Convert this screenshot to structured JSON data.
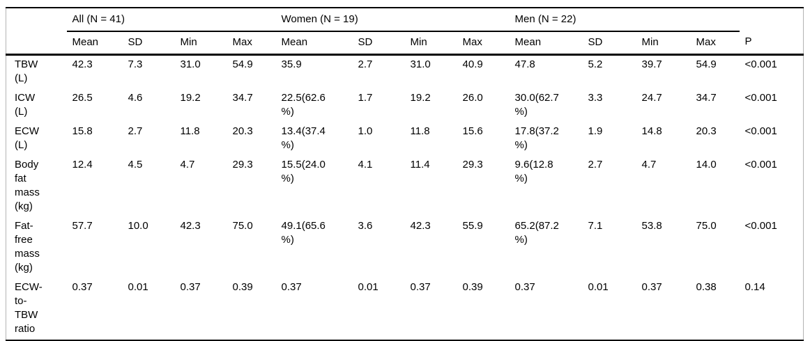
{
  "table": {
    "groups": [
      {
        "label": "All (N = 41)"
      },
      {
        "label": "Women (N = 19)"
      },
      {
        "label": "Men (N = 22)"
      }
    ],
    "sub_columns": [
      "Mean",
      "SD",
      "Min",
      "Max",
      "Mean",
      "SD",
      "Min",
      "Max",
      "Mean",
      "SD",
      "Min",
      "Max"
    ],
    "p_label": "P",
    "rows": [
      {
        "label": "TBW\n(L)",
        "cells": [
          "42.3",
          "7.3",
          "31.0",
          "54.9",
          "35.9",
          "2.7",
          "31.0",
          "40.9",
          "47.8",
          "5.2",
          "39.7",
          "54.9",
          "<0.001"
        ]
      },
      {
        "label": "ICW\n(L)",
        "cells": [
          "26.5",
          "4.6",
          "19.2",
          "34.7",
          "22.5(62.6\n%)",
          "1.7",
          "19.2",
          "26.0",
          "30.0(62.7\n%)",
          "3.3",
          "24.7",
          "34.7",
          "<0.001"
        ]
      },
      {
        "label": "ECW\n(L)",
        "cells": [
          "15.8",
          "2.7",
          "11.8",
          "20.3",
          "13.4(37.4\n%)",
          "1.0",
          "11.8",
          "15.6",
          "17.8(37.2\n%)",
          "1.9",
          "14.8",
          "20.3",
          "<0.001"
        ]
      },
      {
        "label": "Body\nfat\nmass\n(kg)",
        "cells": [
          "12.4",
          "4.5",
          "4.7",
          "29.3",
          "15.5(24.0\n%)",
          "4.1",
          "11.4",
          "29.3",
          "9.6(12.8\n%)",
          "2.7",
          "4.7",
          "14.0",
          "<0.001"
        ]
      },
      {
        "label": "Fat-\nfree\nmass\n(kg)",
        "cells": [
          "57.7",
          "10.0",
          "42.3",
          "75.0",
          "49.1(65.6\n%)",
          "3.6",
          "42.3",
          "55.9",
          "65.2(87.2\n%)",
          "7.1",
          "53.8",
          "75.0",
          "<0.001"
        ]
      },
      {
        "label": "ECW-\nto-\nTBW\nratio",
        "cells": [
          "0.37",
          "0.01",
          "0.37",
          "0.39",
          "0.37",
          "0.01",
          "0.37",
          "0.39",
          "0.37",
          "0.01",
          "0.37",
          "0.38",
          "0.14"
        ]
      }
    ],
    "colors": {
      "text": "#000000",
      "rule_heavy": "#000000",
      "rule_side": "#b3b3b3",
      "background": "#ffffff"
    }
  },
  "chart_data": {
    "type": "table",
    "title": "",
    "column_groups": [
      "All (N = 41)",
      "Women (N = 19)",
      "Men (N = 22)"
    ],
    "columns": [
      "Mean",
      "SD",
      "Min",
      "Max",
      "Mean",
      "SD",
      "Min",
      "Max",
      "Mean",
      "SD",
      "Min",
      "Max",
      "P"
    ],
    "row_labels": [
      "TBW (L)",
      "ICW (L)",
      "ECW (L)",
      "Body fat mass (kg)",
      "Fat-free mass (kg)",
      "ECW-to-TBW ratio"
    ],
    "rows": [
      [
        "42.3",
        "7.3",
        "31.0",
        "54.9",
        "35.9",
        "2.7",
        "31.0",
        "40.9",
        "47.8",
        "5.2",
        "39.7",
        "54.9",
        "<0.001"
      ],
      [
        "26.5",
        "4.6",
        "19.2",
        "34.7",
        "22.5(62.6 %)",
        "1.7",
        "19.2",
        "26.0",
        "30.0(62.7 %)",
        "3.3",
        "24.7",
        "34.7",
        "<0.001"
      ],
      [
        "15.8",
        "2.7",
        "11.8",
        "20.3",
        "13.4(37.4 %)",
        "1.0",
        "11.8",
        "15.6",
        "17.8(37.2 %)",
        "1.9",
        "14.8",
        "20.3",
        "<0.001"
      ],
      [
        "12.4",
        "4.5",
        "4.7",
        "29.3",
        "15.5(24.0 %)",
        "4.1",
        "11.4",
        "29.3",
        "9.6(12.8 %)",
        "2.7",
        "4.7",
        "14.0",
        "<0.001"
      ],
      [
        "57.7",
        "10.0",
        "42.3",
        "75.0",
        "49.1(65.6 %)",
        "3.6",
        "42.3",
        "55.9",
        "65.2(87.2 %)",
        "7.1",
        "53.8",
        "75.0",
        "<0.001"
      ],
      [
        "0.37",
        "0.01",
        "0.37",
        "0.39",
        "0.37",
        "0.01",
        "0.37",
        "0.39",
        "0.37",
        "0.01",
        "0.37",
        "0.38",
        "0.14"
      ]
    ]
  }
}
